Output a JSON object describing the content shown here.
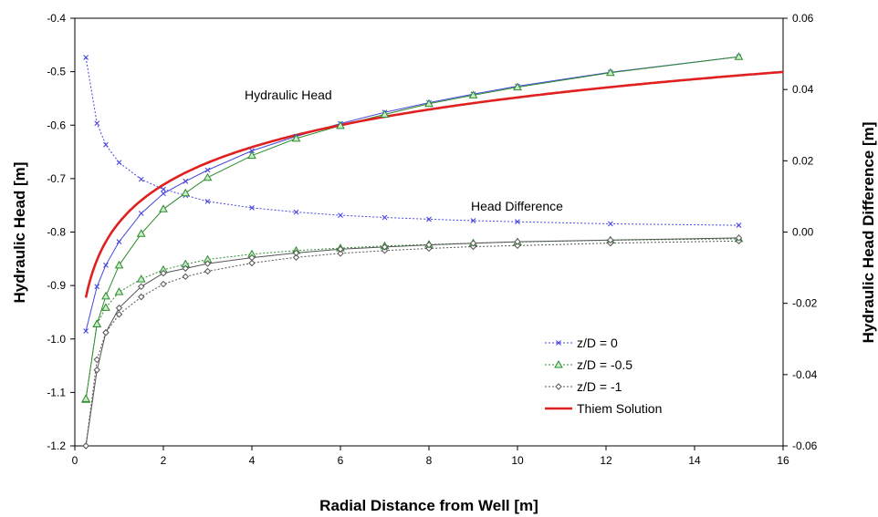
{
  "chart_data": {
    "type": "line",
    "xlabel": "Radial Distance from Well [m]",
    "ylabel_left": "Hydraulic Head [m]",
    "ylabel_right": "Hydraulic Head Difference [m]",
    "xlim": [
      0,
      16
    ],
    "xticks": [
      "0",
      "2",
      "4",
      "6",
      "8",
      "10",
      "12",
      "14",
      "16"
    ],
    "ylim_left": [
      -1.2,
      -0.4
    ],
    "yticks_left": [
      "-1.2",
      "-1.1",
      "-1.0",
      "-0.9",
      "-0.8",
      "-0.7",
      "-0.6",
      "-0.5",
      "-0.4"
    ],
    "ylim_right": [
      -0.06,
      0.06
    ],
    "yticks_right": [
      "-0.06",
      "-0.04",
      "-0.02",
      "0.00",
      "0.02",
      "0.04",
      "0.06"
    ],
    "grid": false,
    "legend_position": "bottom-right",
    "annotations": {
      "head": "Hydraulic Head",
      "diff": "Head Difference"
    },
    "x": [
      0.25,
      0.5,
      0.7,
      1.0,
      1.5,
      2.0,
      2.5,
      3.0,
      4.0,
      5.0,
      6.0,
      7.0,
      8.0,
      9.0,
      10.0,
      12.1,
      15.0
    ],
    "series": [
      {
        "name": "z/D = 0",
        "marker": "x",
        "color": "#4646dc",
        "head": [
          -0.985,
          -0.902,
          -0.862,
          -0.818,
          -0.765,
          -0.728,
          -0.705,
          -0.684,
          -0.648,
          -0.621,
          -0.597,
          -0.576,
          -0.558,
          -0.542,
          -0.527,
          -0.501,
          -0.472
        ],
        "diff": [
          0.049,
          0.0305,
          0.0245,
          0.0195,
          0.0148,
          0.012,
          0.0103,
          0.0086,
          0.0068,
          0.0056,
          0.0047,
          0.0041,
          0.0036,
          0.0032,
          0.0029,
          0.0023,
          0.0019
        ]
      },
      {
        "name": "z/D = -0.5",
        "marker": "triangle",
        "color": "#2e8b2e",
        "head": [
          -1.112,
          -0.972,
          -0.92,
          -0.862,
          -0.803,
          -0.757,
          -0.727,
          -0.698,
          -0.657,
          -0.625,
          -0.601,
          -0.58,
          -0.56,
          -0.544,
          -0.529,
          -0.502,
          -0.472
        ],
        "diff": [
          -0.047,
          -0.0258,
          -0.0212,
          -0.0168,
          -0.0132,
          -0.0106,
          -0.009,
          -0.0077,
          -0.0062,
          -0.0052,
          -0.0045,
          -0.0039,
          -0.0035,
          -0.0031,
          -0.0028,
          -0.0023,
          -0.0019
        ]
      },
      {
        "name": "z/D = -1",
        "marker": "diamond",
        "color": "#555555",
        "head": [
          -1.2,
          -1.058,
          -0.988,
          -0.942,
          -0.902,
          -0.877,
          -0.868,
          -0.859,
          -0.848,
          -0.839,
          -0.832,
          -0.828,
          -0.824,
          -0.821,
          -0.818,
          -0.815,
          -0.811
        ],
        "diff": [
          -0.06,
          -0.0358,
          -0.0282,
          -0.0231,
          -0.0182,
          -0.0146,
          -0.0125,
          -0.011,
          -0.0087,
          -0.0071,
          -0.006,
          -0.0052,
          -0.0046,
          -0.0041,
          -0.0038,
          -0.0031,
          -0.0025
        ]
      }
    ],
    "thiem": {
      "name": "Thiem Solution",
      "color": "#e02020"
    }
  }
}
